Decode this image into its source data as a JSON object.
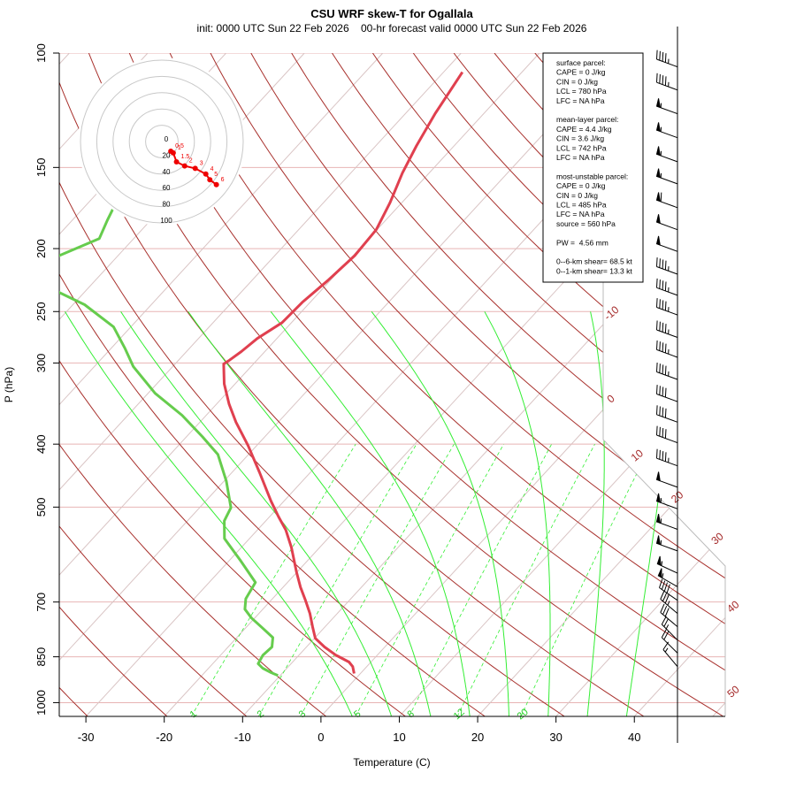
{
  "chart_data": {
    "type": "skewt",
    "title": "CSU WRF skew-T for Ogallala",
    "subtitle": "init: 0000 UTC Sun 22 Feb 2026    00-hr forecast valid 0000 UTC Sun 22 Feb 2026",
    "xlabel": "Temperature (C)",
    "ylabel": "P (hPa)",
    "xlim": [
      -33.4,
      51.6
    ],
    "ylim": [
      1050,
      100
    ],
    "yscale": "log",
    "xticks": [
      -30,
      -20,
      -10,
      0,
      10,
      20,
      30,
      40
    ],
    "yticks": [
      100,
      150,
      200,
      250,
      300,
      400,
      500,
      700,
      850,
      1000
    ],
    "isotherm_labels": [
      -10,
      0,
      10,
      20,
      30,
      40,
      50
    ],
    "mixing_ratio_labels": [
      1,
      2,
      3,
      5,
      8,
      12,
      20
    ],
    "series": [
      {
        "color": "#e0404f",
        "pressure": [
          902,
          880,
          866,
          845,
          821,
          796,
          764,
          729,
          696,
          664,
          629,
          577,
          542,
          517,
          489,
          442,
          402,
          370,
          347,
          323,
          301,
          297,
          288,
          275,
          260,
          242,
          224,
          205,
          187,
          170,
          153,
          139,
          124,
          107
        ],
        "values": [
          -0.8,
          -1.8,
          -2.8,
          -5.3,
          -7.7,
          -9.9,
          -11.6,
          -13.5,
          -15.6,
          -17.8,
          -20.1,
          -23.6,
          -26.4,
          -28.9,
          -31.7,
          -36.5,
          -41.1,
          -45.4,
          -48.4,
          -51.4,
          -53.8,
          -53.5,
          -53.0,
          -52.5,
          -51.2,
          -51.0,
          -50.3,
          -49.8,
          -50.1,
          -51.5,
          -53.4,
          -54.8,
          -56.2,
          -57.6
        ]
      },
      {
        "color": "#66cc4d",
        "pressure": [
          908,
          899,
          885,
          871,
          845,
          821,
          794,
          769,
          741,
          718,
          692,
          653,
          604,
          559,
          525,
          501,
          456,
          415,
          390,
          361,
          334,
          304,
          285,
          264,
          244,
          227,
          209,
          193,
          181,
          173
        ],
        "values": [
          -10.3,
          -11.5,
          -13.1,
          -14.2,
          -14.6,
          -14.4,
          -15.4,
          -17.7,
          -20.4,
          -22.3,
          -23.4,
          -24.1,
          -28.6,
          -33.2,
          -35.3,
          -36.0,
          -39.7,
          -43.9,
          -47.9,
          -53.1,
          -59.1,
          -65.0,
          -68.2,
          -72.2,
          -78.5,
          -86.3,
          -88.5,
          -84.4,
          -85.5,
          -86.2
        ]
      }
    ],
    "wind": {
      "pressure": [
        105,
        114,
        124,
        135,
        147,
        159,
        173,
        187,
        202,
        219,
        236,
        253,
        274,
        294,
        318,
        344,
        370,
        398,
        432,
        466,
        503,
        541,
        584,
        632,
        663,
        696,
        729,
        764,
        801,
        839,
        880
      ],
      "direction": [
        290,
        290,
        290,
        290,
        290,
        290,
        290,
        290,
        290,
        290,
        290,
        290,
        290,
        290,
        290,
        290,
        290,
        290,
        290,
        290,
        290,
        290,
        290,
        295,
        300,
        305,
        310,
        310,
        315,
        315,
        320
      ],
      "speed": [
        45,
        45,
        55,
        55,
        55,
        55,
        60,
        50,
        50,
        45,
        45,
        45,
        45,
        45,
        45,
        40,
        40,
        40,
        45,
        50,
        55,
        55,
        55,
        55,
        55,
        40,
        35,
        30,
        25,
        20,
        15
      ]
    },
    "hodograph": {
      "ring_labels": [
        0,
        20,
        40,
        60,
        80,
        100
      ],
      "labels": [
        "0.5",
        "1",
        "1.5",
        "2",
        "3",
        "4",
        "5",
        "6"
      ],
      "u": [
        11,
        14,
        18,
        28,
        41,
        54,
        59,
        67
      ],
      "v": [
        -12,
        -14,
        -25,
        -30,
        -33,
        -40,
        -47,
        -53
      ],
      "color": "#ee0000"
    },
    "info": [
      [
        "surface parcel:",
        "CAPE = 0 J/kg",
        "CIN = 0 J/kg",
        "LCL = 780 hPa",
        "LFC = NA hPa"
      ],
      [
        "mean-layer parcel:",
        "CAPE = 4.4 J/kg",
        "CIN = 3.6 J/kg",
        "LCL = 742 hPa",
        "LFC = NA hPa"
      ],
      [
        "most-unstable parcel:",
        "CAPE = 0 J/kg",
        "CIN = 0 J/kg",
        "LCL = 485 hPa",
        "LFC = NA hPa",
        "source = 560 hPa"
      ],
      [
        "PW =  4.56 mm"
      ],
      [
        "0--6-km shear= 68.5 kt",
        "0--1-km shear= 13.3 kt"
      ]
    ]
  }
}
